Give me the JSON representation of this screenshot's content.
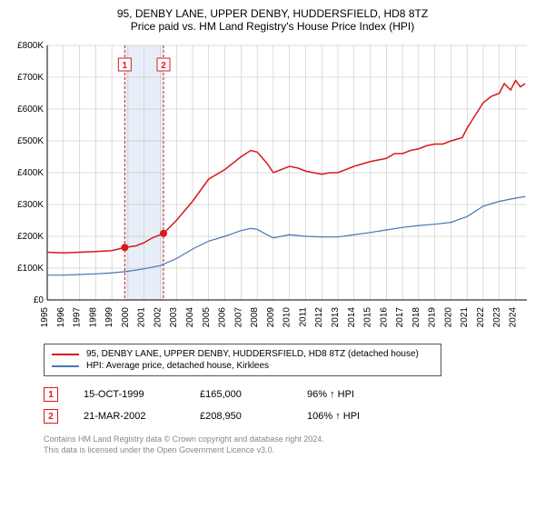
{
  "title_line1": "95, DENBY LANE, UPPER DENBY, HUDDERSFIELD, HD8 8TZ",
  "title_line2": "Price paid vs. HM Land Registry's House Price Index (HPI)",
  "chart": {
    "type": "line",
    "background_color": "#ffffff",
    "grid_color": "#bbbbbb",
    "axis_color": "#000000",
    "y_label_prefix": "£",
    "y_label_suffix": "K",
    "ylim": [
      0,
      800
    ],
    "ytick_step": 100,
    "y_fontsize": 10,
    "x_years": [
      1995,
      1996,
      1997,
      1998,
      1999,
      2000,
      2001,
      2002,
      2003,
      2004,
      2005,
      2006,
      2007,
      2008,
      2009,
      2010,
      2011,
      2012,
      2013,
      2014,
      2015,
      2016,
      2017,
      2018,
      2019,
      2020,
      2021,
      2022,
      2023,
      2024
    ],
    "x_fontsize": 10,
    "highlight_band": {
      "x_start": 1999.8,
      "x_end": 2002.2,
      "fill": "#e8eef7"
    },
    "marker_lines": [
      {
        "x": 1999.8,
        "color": "#d7191c",
        "dash": "3,2",
        "width": 1
      },
      {
        "x": 2002.2,
        "color": "#d7191c",
        "dash": "3,2",
        "width": 1
      }
    ],
    "marker_badges": [
      {
        "x": 1999.8,
        "label": "1",
        "color": "#d7191c"
      },
      {
        "x": 2002.2,
        "label": "2",
        "color": "#d7191c"
      }
    ],
    "series": [
      {
        "name": "property",
        "color": "#d7191c",
        "width": 1.5,
        "points": [
          [
            1995,
            150
          ],
          [
            1996,
            148
          ],
          [
            1997,
            150
          ],
          [
            1998,
            152
          ],
          [
            1999,
            155
          ],
          [
            1999.8,
            165
          ],
          [
            2000.5,
            170
          ],
          [
            2001,
            180
          ],
          [
            2001.5,
            195
          ],
          [
            2002.2,
            209
          ],
          [
            2003,
            250
          ],
          [
            2004,
            310
          ],
          [
            2005,
            380
          ],
          [
            2006,
            410
          ],
          [
            2007,
            450
          ],
          [
            2007.6,
            470
          ],
          [
            2008,
            465
          ],
          [
            2008.6,
            430
          ],
          [
            2009,
            400
          ],
          [
            2010,
            420
          ],
          [
            2010.5,
            415
          ],
          [
            2011,
            405
          ],
          [
            2012,
            395
          ],
          [
            2012.5,
            400
          ],
          [
            2013,
            400
          ],
          [
            2014,
            420
          ],
          [
            2015,
            435
          ],
          [
            2016,
            445
          ],
          [
            2016.5,
            460
          ],
          [
            2017,
            460
          ],
          [
            2017.5,
            470
          ],
          [
            2018,
            475
          ],
          [
            2018.5,
            485
          ],
          [
            2019,
            490
          ],
          [
            2019.5,
            490
          ],
          [
            2020,
            500
          ],
          [
            2020.7,
            510
          ],
          [
            2021,
            540
          ],
          [
            2021.5,
            580
          ],
          [
            2022,
            620
          ],
          [
            2022.5,
            640
          ],
          [
            2023,
            650
          ],
          [
            2023.3,
            680
          ],
          [
            2023.7,
            660
          ],
          [
            2024,
            690
          ],
          [
            2024.3,
            670
          ],
          [
            2024.6,
            680
          ]
        ],
        "dots": [
          {
            "x": 1999.8,
            "y": 165
          },
          {
            "x": 2002.2,
            "y": 209
          }
        ]
      },
      {
        "name": "hpi",
        "color": "#4575b4",
        "width": 1.2,
        "points": [
          [
            1995,
            78
          ],
          [
            1996,
            78
          ],
          [
            1997,
            80
          ],
          [
            1998,
            82
          ],
          [
            1999,
            85
          ],
          [
            2000,
            90
          ],
          [
            2001,
            98
          ],
          [
            2002,
            108
          ],
          [
            2003,
            130
          ],
          [
            2004,
            160
          ],
          [
            2005,
            185
          ],
          [
            2006,
            200
          ],
          [
            2007,
            218
          ],
          [
            2007.6,
            225
          ],
          [
            2008,
            222
          ],
          [
            2008.6,
            205
          ],
          [
            2009,
            195
          ],
          [
            2010,
            205
          ],
          [
            2011,
            200
          ],
          [
            2012,
            198
          ],
          [
            2013,
            198
          ],
          [
            2014,
            205
          ],
          [
            2015,
            212
          ],
          [
            2016,
            220
          ],
          [
            2017,
            228
          ],
          [
            2018,
            234
          ],
          [
            2019,
            238
          ],
          [
            2020,
            244
          ],
          [
            2021,
            262
          ],
          [
            2022,
            295
          ],
          [
            2023,
            310
          ],
          [
            2023.5,
            315
          ],
          [
            2024,
            320
          ],
          [
            2024.6,
            325
          ]
        ]
      }
    ]
  },
  "legend": {
    "border_color": "#555555",
    "items": [
      {
        "color": "#d7191c",
        "label": "95, DENBY LANE, UPPER DENBY, HUDDERSFIELD, HD8 8TZ (detached house)"
      },
      {
        "color": "#4575b4",
        "label": "HPI: Average price, detached house, Kirklees"
      }
    ]
  },
  "transactions": [
    {
      "num": "1",
      "date": "15-OCT-1999",
      "price": "£165,000",
      "pct": "96% ↑ HPI",
      "color": "#d7191c"
    },
    {
      "num": "2",
      "date": "21-MAR-2002",
      "price": "£208,950",
      "pct": "106% ↑ HPI",
      "color": "#d7191c"
    }
  ],
  "footer_line1": "Contains HM Land Registry data © Crown copyright and database right 2024.",
  "footer_line2": "This data is licensed under the Open Government Licence v3.0."
}
